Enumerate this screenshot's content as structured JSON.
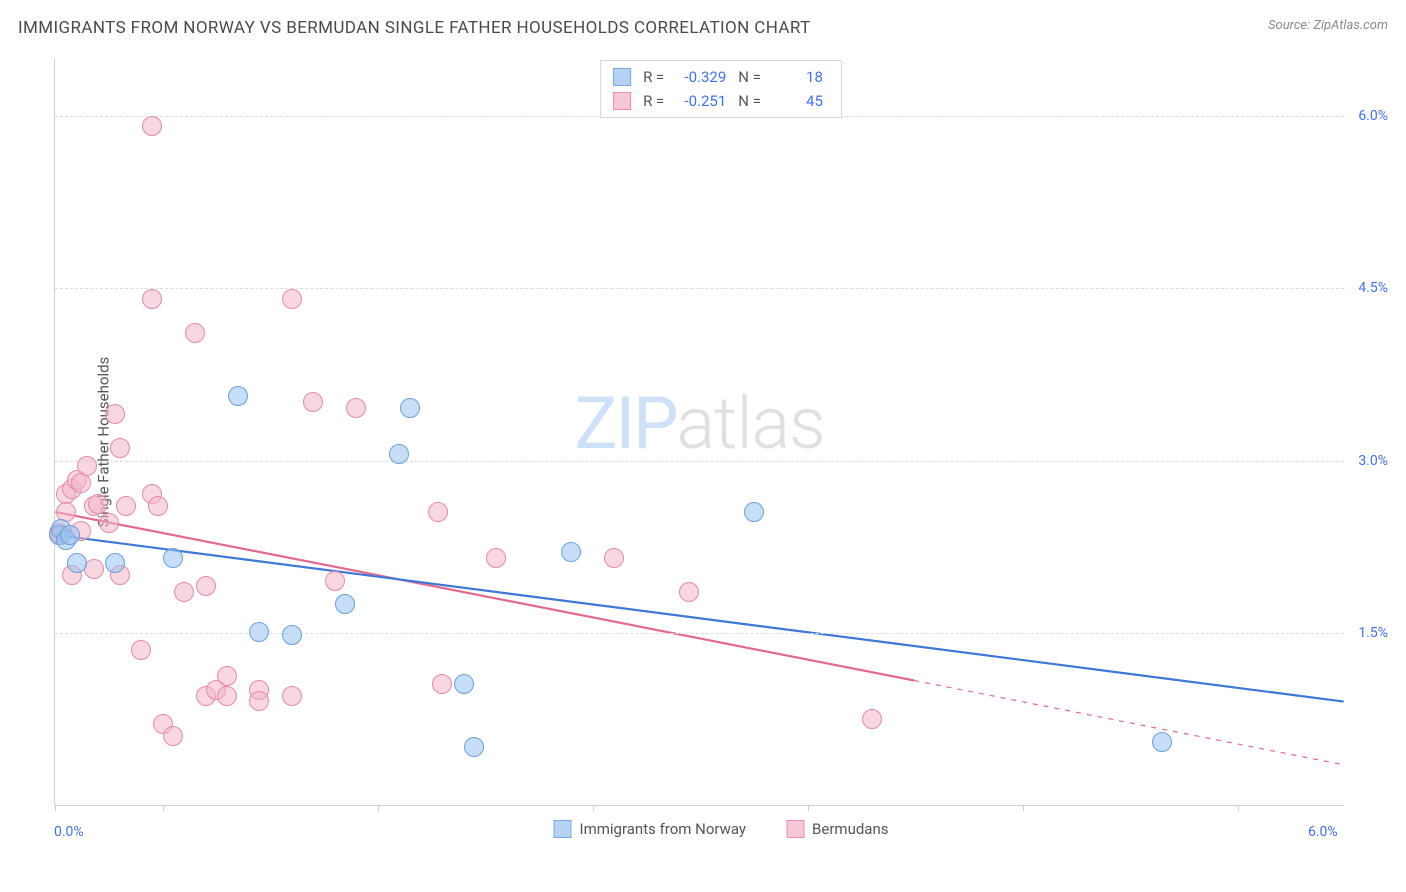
{
  "header": {
    "title": "IMMIGRANTS FROM NORWAY VS BERMUDAN SINGLE FATHER HOUSEHOLDS CORRELATION CHART",
    "source_prefix": "Source: ",
    "source_name": "ZipAtlas.com"
  },
  "chart": {
    "type": "scatter",
    "y_axis_title": "Single Father Households",
    "watermark_zip": "ZIP",
    "watermark_atlas": "atlas",
    "background_color": "#ffffff",
    "grid_color": "#dddddd",
    "axis_color": "#d0d0d0",
    "tick_label_color": "#4472e4",
    "xlim": [
      0.0,
      6.0
    ],
    "ylim": [
      0.0,
      6.5
    ],
    "y_ticks": [
      {
        "value": 1.5,
        "label": "1.5%"
      },
      {
        "value": 3.0,
        "label": "3.0%"
      },
      {
        "value": 4.5,
        "label": "4.5%"
      },
      {
        "value": 6.0,
        "label": "6.0%"
      }
    ],
    "x_ticks": [
      0.0,
      0.5,
      1.5,
      2.5,
      3.5,
      4.5,
      5.5
    ],
    "x_tick_labels": {
      "left": "0.0%",
      "right": "6.0%"
    },
    "legend_top": [
      {
        "swatch_fill": "#b5d1f3",
        "swatch_border": "#7aa9e0",
        "r_label": "R =",
        "r_value": "-0.329",
        "n_label": "N =",
        "n_value": "18"
      },
      {
        "swatch_fill": "#f6c8d5",
        "swatch_border": "#e98fab",
        "r_label": "R =",
        "r_value": "-0.251",
        "n_label": "N =",
        "n_value": "45"
      }
    ],
    "legend_bottom": [
      {
        "swatch_fill": "#b5d1f3",
        "swatch_border": "#7aa9e0",
        "label": "Immigrants from Norway"
      },
      {
        "swatch_fill": "#f6c8d5",
        "swatch_border": "#e98fab",
        "label": "Bermudans"
      }
    ],
    "series": {
      "norway": {
        "fill": "rgba(151,194,240,0.55)",
        "stroke": "#6f9fd8",
        "radius": 10,
        "trend": {
          "color": "#3d78d6",
          "width": 2.2,
          "x1": 0.0,
          "y1": 2.35,
          "x2": 6.0,
          "y2": 0.9,
          "dash_start_x": 6.0
        },
        "points": [
          {
            "x": 0.02,
            "y": 2.35
          },
          {
            "x": 0.03,
            "y": 2.4
          },
          {
            "x": 0.05,
            "y": 2.3
          },
          {
            "x": 0.07,
            "y": 2.35
          },
          {
            "x": 0.1,
            "y": 2.1
          },
          {
            "x": 0.28,
            "y": 2.1
          },
          {
            "x": 0.55,
            "y": 2.15
          },
          {
            "x": 0.85,
            "y": 3.55
          },
          {
            "x": 0.95,
            "y": 1.5
          },
          {
            "x": 1.1,
            "y": 1.48
          },
          {
            "x": 1.35,
            "y": 1.75
          },
          {
            "x": 1.6,
            "y": 3.05
          },
          {
            "x": 1.65,
            "y": 3.45
          },
          {
            "x": 1.9,
            "y": 1.05
          },
          {
            "x": 1.95,
            "y": 0.5
          },
          {
            "x": 2.4,
            "y": 2.2
          },
          {
            "x": 3.25,
            "y": 2.55
          },
          {
            "x": 5.15,
            "y": 0.55
          }
        ]
      },
      "bermudans": {
        "fill": "rgba(243,183,201,0.55)",
        "stroke": "#e48ca8",
        "radius": 10,
        "trend": {
          "color": "#e26a8d",
          "width": 2.2,
          "x1": 0.0,
          "y1": 2.55,
          "x2": 6.0,
          "y2": 0.35,
          "dash_start_x": 4.0
        },
        "points": [
          {
            "x": 0.02,
            "y": 2.36
          },
          {
            "x": 0.03,
            "y": 2.35
          },
          {
            "x": 0.05,
            "y": 2.7
          },
          {
            "x": 0.08,
            "y": 2.75
          },
          {
            "x": 0.1,
            "y": 2.82
          },
          {
            "x": 0.12,
            "y": 2.8
          },
          {
            "x": 0.12,
            "y": 2.38
          },
          {
            "x": 0.15,
            "y": 2.95
          },
          {
            "x": 0.18,
            "y": 2.6
          },
          {
            "x": 0.2,
            "y": 2.62
          },
          {
            "x": 0.08,
            "y": 2.0
          },
          {
            "x": 0.18,
            "y": 2.05
          },
          {
            "x": 0.28,
            "y": 3.4
          },
          {
            "x": 0.3,
            "y": 3.1
          },
          {
            "x": 0.45,
            "y": 2.7
          },
          {
            "x": 0.45,
            "y": 5.9
          },
          {
            "x": 0.45,
            "y": 4.4
          },
          {
            "x": 0.48,
            "y": 2.6
          },
          {
            "x": 0.4,
            "y": 1.35
          },
          {
            "x": 0.5,
            "y": 0.7
          },
          {
            "x": 0.55,
            "y": 0.6
          },
          {
            "x": 0.6,
            "y": 1.85
          },
          {
            "x": 0.65,
            "y": 4.1
          },
          {
            "x": 0.7,
            "y": 0.95
          },
          {
            "x": 0.75,
            "y": 1.0
          },
          {
            "x": 0.8,
            "y": 0.95
          },
          {
            "x": 0.7,
            "y": 1.9
          },
          {
            "x": 0.8,
            "y": 1.12
          },
          {
            "x": 0.95,
            "y": 1.0
          },
          {
            "x": 1.1,
            "y": 4.4
          },
          {
            "x": 1.1,
            "y": 0.95
          },
          {
            "x": 1.2,
            "y": 3.5
          },
          {
            "x": 1.3,
            "y": 1.95
          },
          {
            "x": 1.4,
            "y": 3.45
          },
          {
            "x": 1.78,
            "y": 2.55
          },
          {
            "x": 1.8,
            "y": 1.05
          },
          {
            "x": 2.05,
            "y": 2.15
          },
          {
            "x": 2.6,
            "y": 2.15
          },
          {
            "x": 2.95,
            "y": 1.85
          },
          {
            "x": 3.8,
            "y": 0.75
          },
          {
            "x": 0.25,
            "y": 2.45
          },
          {
            "x": 0.33,
            "y": 2.6
          },
          {
            "x": 0.05,
            "y": 2.55
          },
          {
            "x": 0.3,
            "y": 2.0
          },
          {
            "x": 0.95,
            "y": 0.9
          }
        ]
      }
    }
  }
}
